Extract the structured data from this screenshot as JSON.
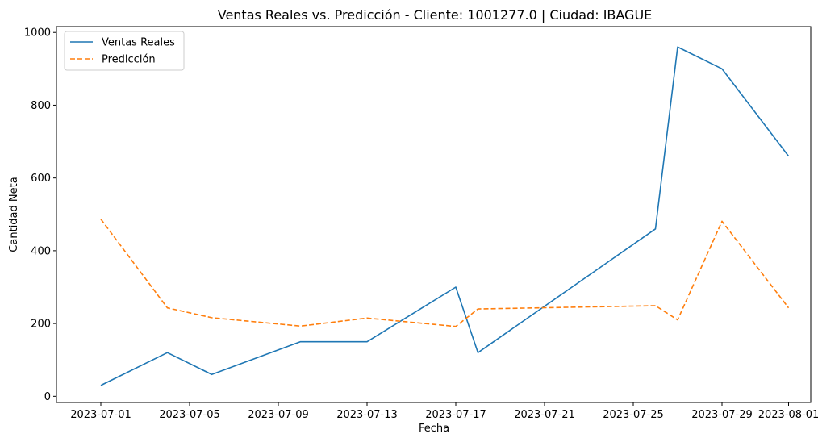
{
  "chart_data": {
    "type": "line",
    "title": "Ventas Reales vs. Predicción - Cliente: 1001277.0 | Ciudad: IBAGUE",
    "xlabel": "Fecha",
    "ylabel": "Cantidad Neta",
    "x_axis": {
      "type": "date",
      "range": [
        "2023-06-29",
        "2023-08-02"
      ],
      "ticks": [
        "2023-07-01",
        "2023-07-05",
        "2023-07-09",
        "2023-07-13",
        "2023-07-17",
        "2023-07-21",
        "2023-07-25",
        "2023-07-29",
        "2023-08-01"
      ]
    },
    "y_axis": {
      "range": [
        -17,
        1016
      ],
      "ticks": [
        0,
        200,
        400,
        600,
        800,
        1000
      ]
    },
    "grid": false,
    "legend_position": "top-left",
    "series": [
      {
        "name": "Ventas Reales",
        "color": "#1f77b4",
        "style": "solid",
        "points": [
          {
            "x": "2023-07-01",
            "y": 30
          },
          {
            "x": "2023-07-04",
            "y": 120
          },
          {
            "x": "2023-07-06",
            "y": 60
          },
          {
            "x": "2023-07-10",
            "y": 150
          },
          {
            "x": "2023-07-13",
            "y": 150
          },
          {
            "x": "2023-07-17",
            "y": 300
          },
          {
            "x": "2023-07-18",
            "y": 120
          },
          {
            "x": "2023-07-26",
            "y": 460
          },
          {
            "x": "2023-07-27",
            "y": 960
          },
          {
            "x": "2023-07-29",
            "y": 900
          },
          {
            "x": "2023-08-01",
            "y": 660
          }
        ]
      },
      {
        "name": "Predicción",
        "color": "#ff7f0e",
        "style": "dashed",
        "points": [
          {
            "x": "2023-07-01",
            "y": 487
          },
          {
            "x": "2023-07-04",
            "y": 243
          },
          {
            "x": "2023-07-06",
            "y": 216
          },
          {
            "x": "2023-07-10",
            "y": 193
          },
          {
            "x": "2023-07-13",
            "y": 215
          },
          {
            "x": "2023-07-17",
            "y": 192
          },
          {
            "x": "2023-07-18",
            "y": 240
          },
          {
            "x": "2023-07-26",
            "y": 249
          },
          {
            "x": "2023-07-27",
            "y": 210
          },
          {
            "x": "2023-07-29",
            "y": 481
          },
          {
            "x": "2023-08-01",
            "y": 243
          }
        ]
      }
    ]
  }
}
